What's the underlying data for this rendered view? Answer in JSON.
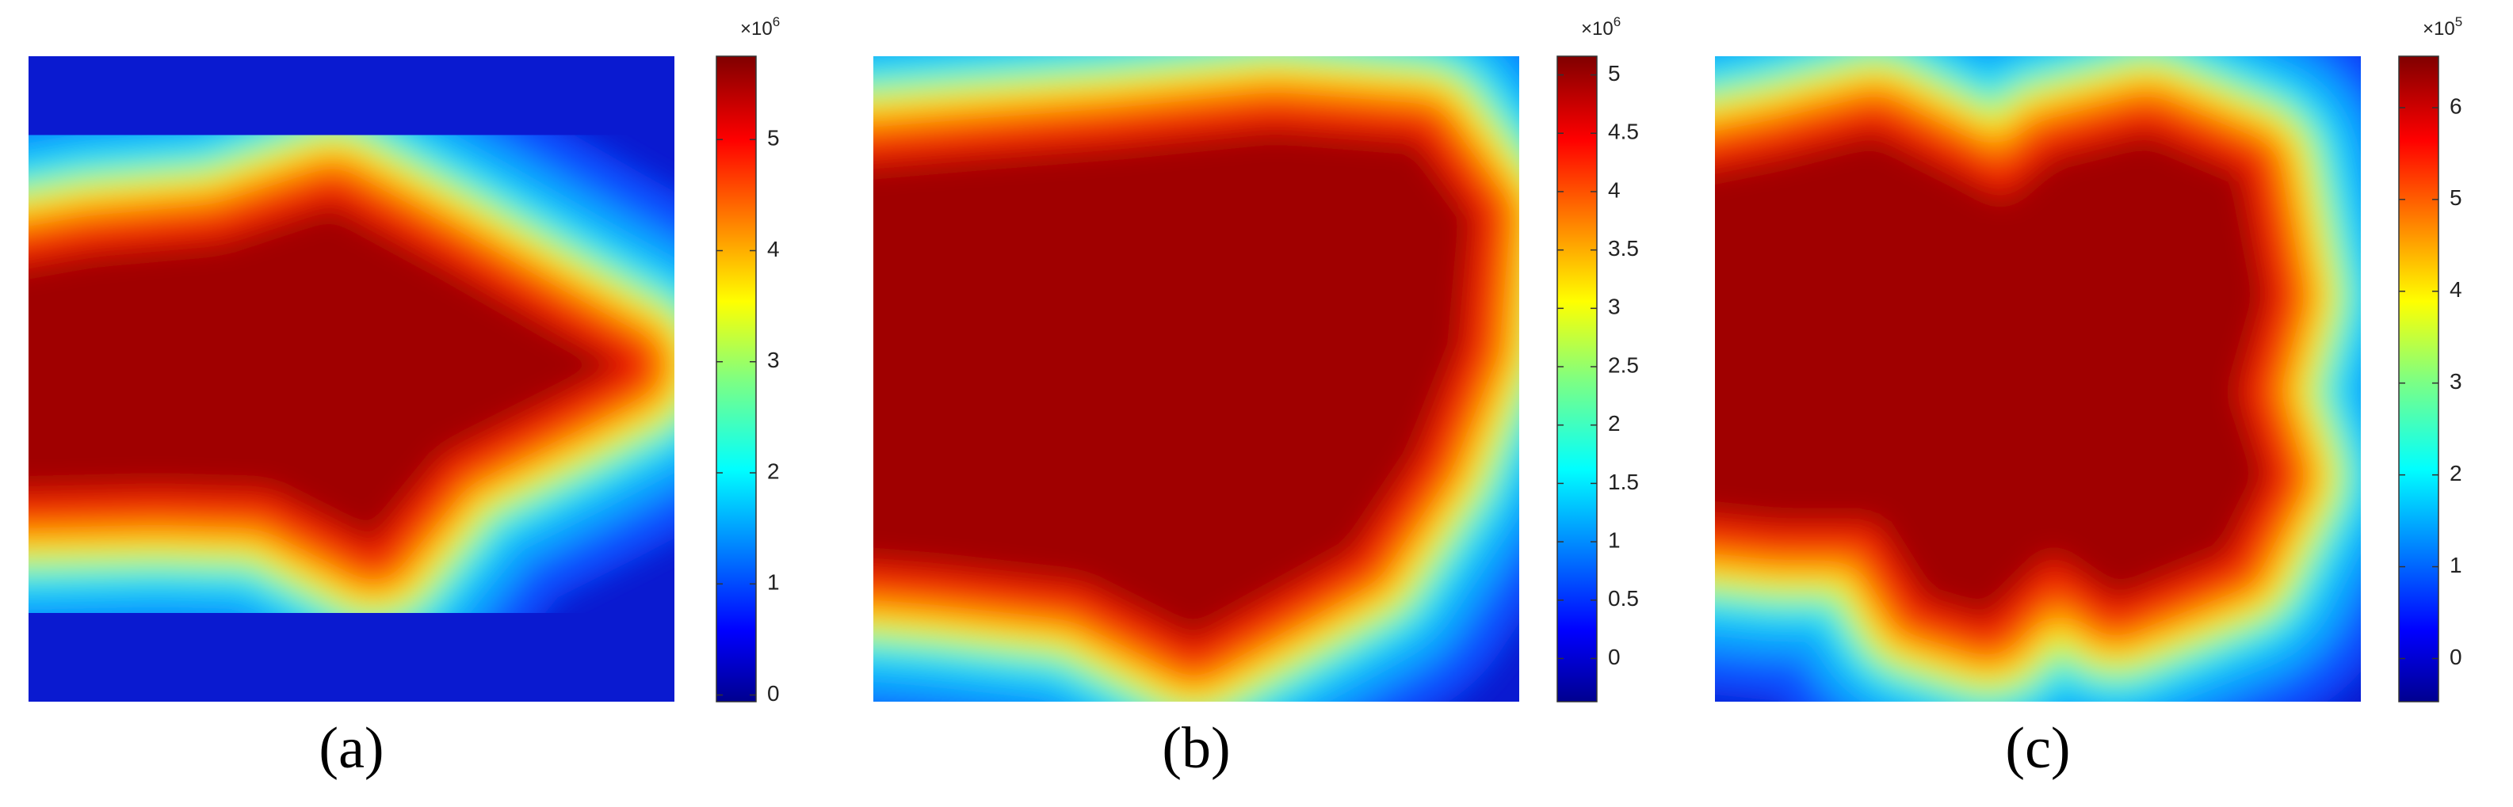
{
  "chart_data": [
    {
      "type": "heatmap",
      "label": "(a)",
      "colorbar": {
        "multiplier": "×10",
        "exponent": "6",
        "lim": [
          -0.06,
          5.75
        ],
        "ticks": [
          0,
          1,
          2,
          3,
          4,
          5
        ]
      }
    },
    {
      "type": "heatmap",
      "label": "(b)",
      "colorbar": {
        "multiplier": "×10",
        "exponent": "6",
        "lim": [
          -0.37,
          5.16
        ],
        "ticks": [
          0,
          0.5,
          1,
          1.5,
          2,
          2.5,
          3,
          3.5,
          4,
          4.5,
          5
        ]
      }
    },
    {
      "type": "heatmap",
      "label": "(c)",
      "colorbar": {
        "multiplier": "×10",
        "exponent": "5",
        "lim": [
          -0.47,
          6.56
        ],
        "ticks": [
          0,
          1,
          2,
          3,
          4,
          5,
          6
        ]
      }
    }
  ]
}
